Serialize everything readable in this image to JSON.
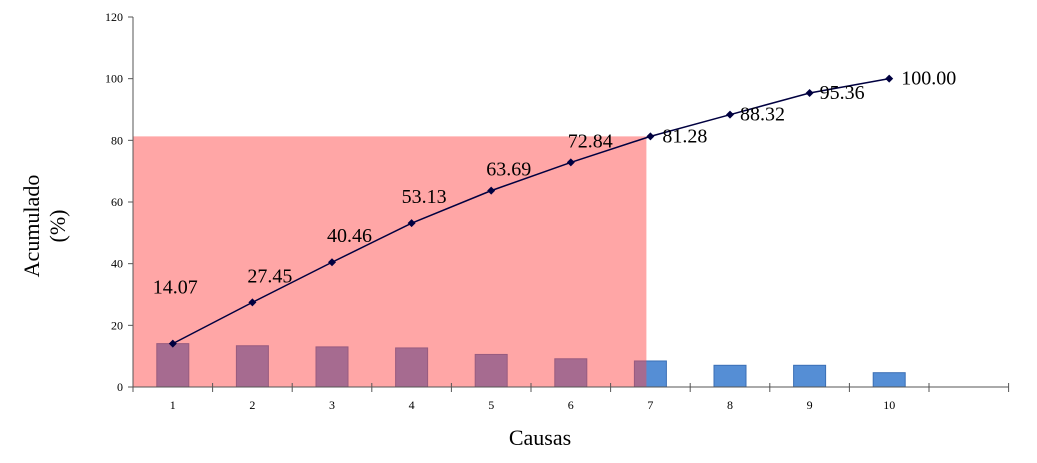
{
  "chart_data": {
    "type": "bar+line (pareto)",
    "xlabel": "Causas",
    "ylabel_line1": "Acumulado",
    "ylabel_line2": "(%)",
    "categories": [
      "1",
      "2",
      "3",
      "4",
      "5",
      "6",
      "7",
      "8",
      "9",
      "10"
    ],
    "bar_values": [
      14.07,
      13.38,
      13.01,
      12.67,
      10.56,
      9.15,
      8.44,
      7.04,
      7.04,
      4.64
    ],
    "cumulative": [
      14.07,
      27.45,
      40.46,
      53.13,
      63.69,
      72.84,
      81.28,
      88.32,
      95.36,
      100.0
    ],
    "cumulative_labels": [
      "14.07",
      "27.45",
      "40.46",
      "53.13",
      "63.69",
      "72.84",
      "81.28",
      "88.32",
      "95.36",
      "100.00"
    ],
    "yticks": [
      0,
      20,
      40,
      60,
      80,
      100,
      120
    ],
    "ylim": [
      0,
      120
    ],
    "highlight_region": {
      "from_category": "1",
      "to_category": "7",
      "up_to_value": 81.28,
      "color": "#ff4646"
    },
    "colors": {
      "bars": "#558ed5",
      "line": "#000040",
      "highlight": "#ff4646"
    },
    "grid": false,
    "legend": "none"
  }
}
